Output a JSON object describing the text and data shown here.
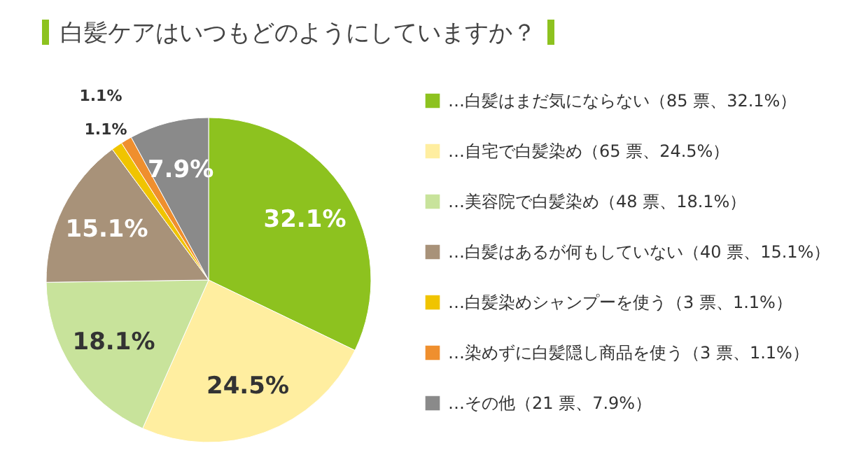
{
  "chart_data": {
    "type": "pie",
    "title": "白髪ケアはいつもどのようにしていますか？",
    "categories": [
      "…白髪はまだ気にならない（85 票、32.1%）",
      "…自宅で白髪染め（65 票、24.5%）",
      "…美容院で白髪染め（48 票、18.1%）",
      "…白髪はあるが何もしていない（40 票、15.1%）",
      "…白髪染めシャンプーを使う（3 票、1.1%）",
      "…染めずに白髪隠し商品を使う（3 票、1.1%）",
      "…その他（21 票、7.9%）"
    ],
    "values": [
      32.1,
      24.5,
      18.1,
      15.1,
      1.1,
      1.1,
      7.9
    ],
    "colors": [
      "#8dc21f",
      "#ffeea0",
      "#c8e39b",
      "#a89279",
      "#f0c400",
      "#ef8f2e",
      "#8a8a8a"
    ],
    "value_labels": [
      "32.1%",
      "24.5%",
      "18.1%",
      "15.1%",
      "1.1%",
      "1.1%",
      "7.9%"
    ],
    "legend": "right"
  }
}
